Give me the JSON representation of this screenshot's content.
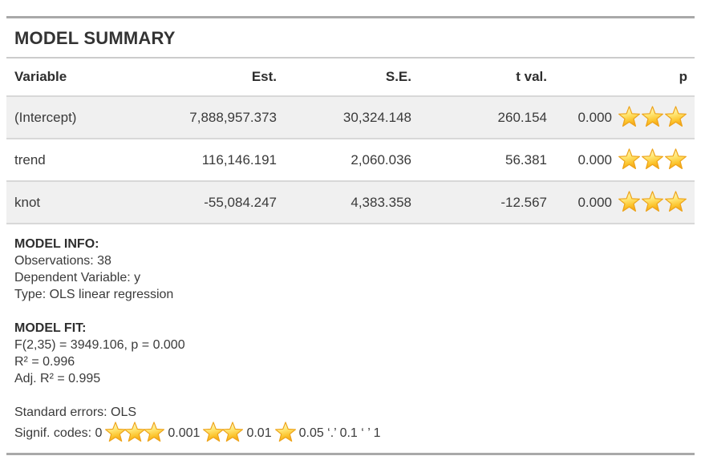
{
  "title": "MODEL SUMMARY",
  "colors": {
    "thick_border": "#a9a9a9",
    "thin_border": "#d8d8d8",
    "stripe_background": "#f0f0f0",
    "text": "#333333",
    "star_gold": "#fbc02d"
  },
  "table": {
    "columns": {
      "variable": "Variable",
      "est": "Est.",
      "se": "S.E.",
      "tval": "t val.",
      "p": "p"
    },
    "rows": [
      {
        "variable": "(Intercept)",
        "est": "7,888,957.373",
        "se": "30,324.148",
        "tval": "260.154",
        "p": "0.000",
        "stars": 3
      },
      {
        "variable": "trend",
        "est": "116,146.191",
        "se": "2,060.036",
        "tval": "56.381",
        "p": "0.000",
        "stars": 3
      },
      {
        "variable": "knot",
        "est": "-55,084.247",
        "se": "4,383.358",
        "tval": "-12.567",
        "p": "0.000",
        "stars": 3
      }
    ]
  },
  "model_info": {
    "heading": "MODEL INFO:",
    "lines": {
      "observations": "Observations: 38",
      "dependent_variable": "Dependent Variable: y",
      "type": "Type: OLS linear regression"
    }
  },
  "model_fit": {
    "heading": "MODEL FIT:",
    "lines": {
      "f_stat": "F(2,35) = 3949.106, p = 0.000",
      "r_squared": "R² = 0.996",
      "adj_r_squared": "Adj. R² = 0.995"
    }
  },
  "footer": {
    "standard_errors": "Standard errors: OLS",
    "signif_codes_segments": [
      {
        "text": "Signif. codes: 0"
      },
      {
        "stars": 3
      },
      {
        "text": "0.001"
      },
      {
        "stars": 2
      },
      {
        "text": "0.01"
      },
      {
        "stars": 1
      },
      {
        "text": "0.05 ‘.’ 0.1 ‘ ’ 1"
      }
    ]
  }
}
